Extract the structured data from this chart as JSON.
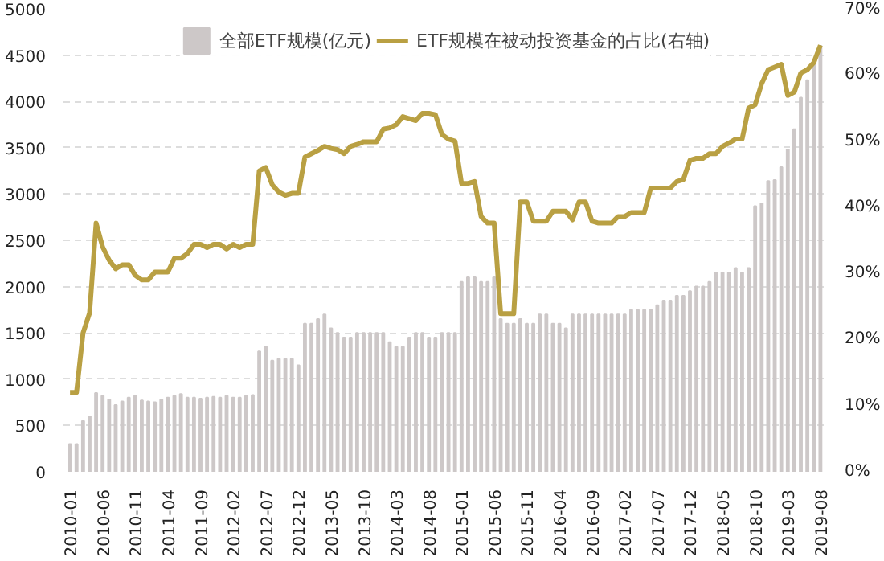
{
  "chart_data": {
    "type": "bar",
    "categories": [
      "2010-01",
      null,
      null,
      null,
      null,
      "2010-06",
      null,
      null,
      null,
      null,
      "2010-11",
      null,
      null,
      null,
      null,
      "2011-04",
      null,
      null,
      null,
      null,
      "2011-09",
      null,
      null,
      null,
      null,
      "2012-02",
      null,
      null,
      null,
      null,
      "2012-07",
      null,
      null,
      null,
      null,
      "2012-12",
      null,
      null,
      null,
      null,
      "2013-05",
      null,
      null,
      null,
      null,
      "2013-10",
      null,
      null,
      null,
      null,
      "2014-03",
      null,
      null,
      null,
      null,
      "2014-08",
      null,
      null,
      null,
      null,
      "2015-01",
      null,
      null,
      null,
      null,
      "2015-06",
      null,
      null,
      null,
      null,
      "2015-11",
      null,
      null,
      null,
      null,
      "2016-04",
      null,
      null,
      null,
      null,
      "2016-09",
      null,
      null,
      null,
      null,
      "2017-02",
      null,
      null,
      null,
      null,
      "2017-07",
      null,
      null,
      null,
      null,
      "2017-12",
      null,
      null,
      null,
      null,
      "2018-05",
      null,
      null,
      null,
      null,
      "2018-10",
      null,
      null,
      null,
      null,
      "2019-03",
      null,
      null,
      null,
      null,
      "2019-08"
    ],
    "series": [
      {
        "name": "全部ETF规模(亿元)",
        "color": "#cdc8c8",
        "values": [
          300,
          300,
          550,
          600,
          850,
          820,
          780,
          720,
          760,
          800,
          820,
          770,
          760,
          750,
          780,
          800,
          820,
          840,
          800,
          800,
          790,
          800,
          810,
          800,
          820,
          800,
          800,
          820,
          830,
          1300,
          1350,
          1200,
          1220,
          1220,
          1220,
          1150,
          1600,
          1600,
          1650,
          1700,
          1550,
          1500,
          1450,
          1450,
          1500,
          1500,
          1500,
          1500,
          1500,
          1400,
          1350,
          1350,
          1450,
          1500,
          1500,
          1450,
          1450,
          1500,
          1500,
          1500,
          2050,
          2100,
          2100,
          2050,
          2050,
          2100,
          1650,
          1600,
          1600,
          1650,
          1600,
          1600,
          1700,
          1700,
          1600,
          1600,
          1550,
          1700,
          1700,
          1700,
          1700,
          1700,
          1700,
          1700,
          1700,
          1700,
          1750,
          1750,
          1750,
          1750,
          1800,
          1850,
          1850,
          1900,
          1900,
          1950,
          2000,
          2000,
          2050,
          2150,
          2150,
          2150,
          2200,
          2150,
          2200,
          2870,
          2900,
          3140,
          3150,
          3290,
          3480,
          3700,
          4040,
          4230,
          4400,
          4600
        ]
      },
      {
        "name": "ETF规模在被动投资基金的占比(右轴)",
        "type": "line",
        "axis": "y2",
        "color": "#b9a043",
        "values": [
          12,
          12,
          21,
          24,
          37.6,
          34,
          32,
          30.7,
          31.3,
          31.3,
          29.7,
          29,
          29,
          30.2,
          30.2,
          30.2,
          32.3,
          32.3,
          33,
          34.4,
          34.4,
          33.9,
          34.4,
          34.4,
          33.7,
          34.4,
          33.9,
          34.4,
          34.4,
          45.5,
          46,
          43.4,
          42.3,
          41.8,
          42.1,
          42.1,
          47.6,
          48.1,
          48.6,
          49.2,
          48.9,
          48.7,
          48.1,
          49.2,
          49.5,
          49.9,
          49.9,
          49.9,
          51.8,
          52,
          52.5,
          53.7,
          53.4,
          53.1,
          54.2,
          54.2,
          54,
          51,
          50.3,
          50,
          43.6,
          43.6,
          43.9,
          38.6,
          37.6,
          37.6,
          23.9,
          23.9,
          23.9,
          40.8,
          40.8,
          37.9,
          37.9,
          37.9,
          39.4,
          39.4,
          39.4,
          38.1,
          40.8,
          40.8,
          37.9,
          37.6,
          37.6,
          37.6,
          38.6,
          38.6,
          39.2,
          39.2,
          39.2,
          42.9,
          42.9,
          42.9,
          42.9,
          43.9,
          44.2,
          47.1,
          47.4,
          47.4,
          48.1,
          48.1,
          49.2,
          49.7,
          50.3,
          50.3,
          55,
          55.5,
          58.7,
          60.8,
          61.2,
          61.6,
          56.9,
          57.4,
          60.3,
          60.8,
          61.9,
          64.5
        ]
      }
    ],
    "ylim": [
      0,
      5000
    ],
    "yticks": [
      0,
      500,
      1000,
      1500,
      2000,
      2500,
      3000,
      3500,
      4000,
      4500,
      5000
    ],
    "y2lim": [
      0,
      70
    ],
    "y2ticks": [
      {
        "value": 0,
        "label": "0%"
      },
      {
        "value": 10,
        "label": "10%"
      },
      {
        "value": 20,
        "label": "20%"
      },
      {
        "value": 30,
        "label": "30%"
      },
      {
        "value": 40,
        "label": "40%"
      },
      {
        "value": 50,
        "label": "50%"
      },
      {
        "value": 60,
        "label": "60%"
      },
      {
        "value": 70,
        "label": "70%"
      }
    ],
    "grid": "y",
    "legend": "top",
    "line_style": "solid"
  }
}
